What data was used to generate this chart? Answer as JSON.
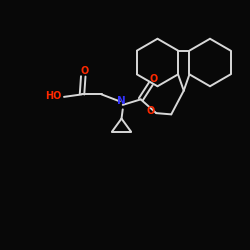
{
  "background_color": "#080808",
  "bond_color": "#d8d8d8",
  "atom_colors": {
    "O": "#ff2800",
    "N": "#3333ff",
    "C": "#d8d8d8"
  },
  "figsize": [
    2.5,
    2.5
  ],
  "dpi": 100
}
